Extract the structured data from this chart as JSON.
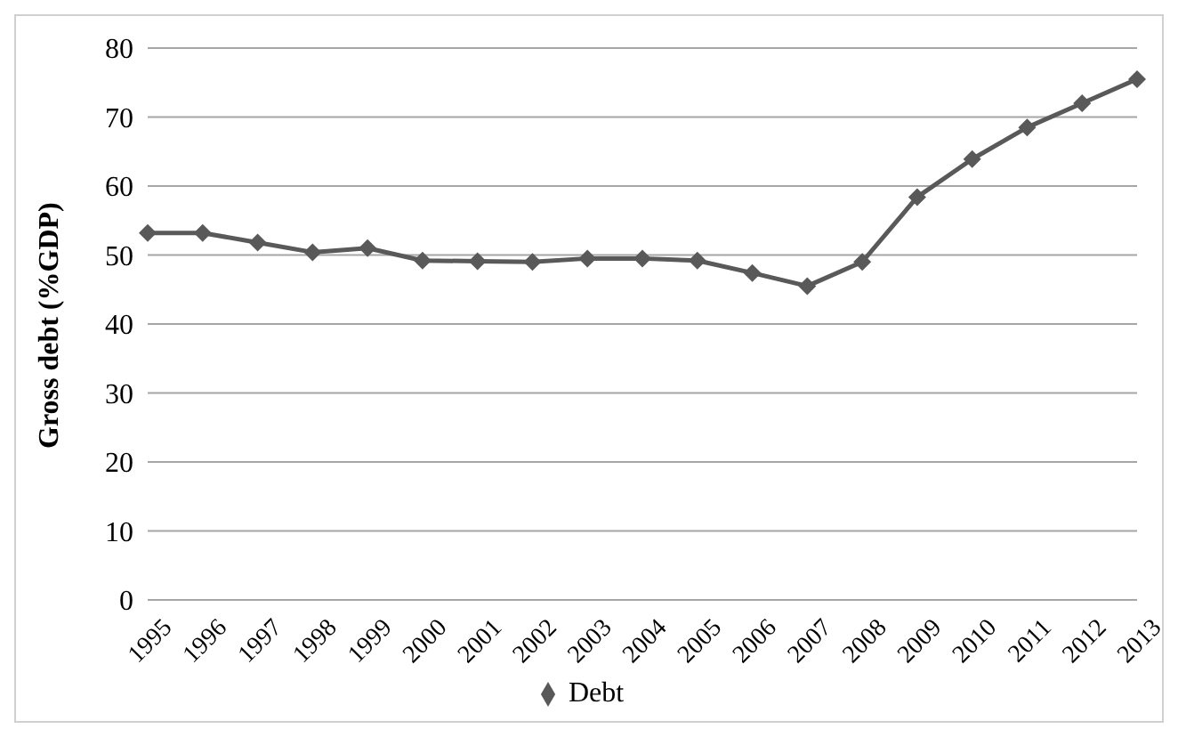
{
  "chart_data": {
    "type": "line",
    "ylabel": "Gross debt (%GDP)",
    "categories": [
      "1995",
      "1996",
      "1997",
      "1998",
      "1999",
      "2000",
      "2001",
      "2002",
      "2003",
      "2004",
      "2005",
      "2006",
      "2007",
      "2008",
      "2009",
      "2010",
      "2011",
      "2012",
      "2013"
    ],
    "series": [
      {
        "name": "Debt",
        "color": "#595959",
        "values": [
          53.2,
          53.2,
          51.8,
          50.4,
          51,
          49.2,
          49.1,
          49,
          49.5,
          49.5,
          49.2,
          47.4,
          45.5,
          49,
          58.4,
          63.9,
          68.5,
          72,
          75.5
        ]
      }
    ],
    "ylim": [
      0,
      80
    ],
    "yticks": [
      0,
      10,
      20,
      30,
      40,
      50,
      60,
      70,
      80
    ],
    "grid": "y",
    "legend": "bottom",
    "marker": "diamond",
    "line_style": "solid"
  }
}
